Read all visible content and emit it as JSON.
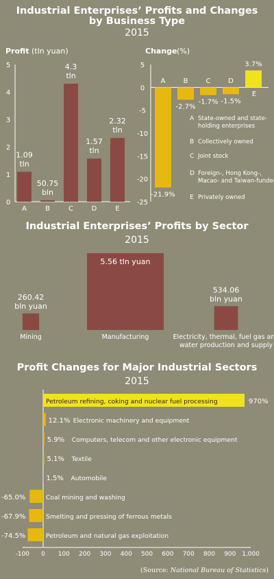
{
  "colors": {
    "background": "#8e8b77",
    "profit_bar": "#8a4a43",
    "change_bar": "#e7b810",
    "highlight_bar": "#f2e21c",
    "text": "#ffffff"
  },
  "section1": {
    "title_line1": "Industrial Enterprises’ Profits and Changes",
    "title_line2": "by Business Type",
    "year": "2015"
  },
  "section2": {
    "title": "Industrial Enterprises’ Profits by Sector",
    "year": "2015"
  },
  "section3": {
    "title": "Profit Changes for Major Industrial Sectors",
    "year": "2015"
  },
  "source": {
    "prefix": "(Source: ",
    "name": "National Bureau of Statistics",
    "suffix": ")"
  },
  "chart_data": [
    {
      "type": "bar",
      "title": "Profit",
      "unit": "(tln yuan)",
      "categories": [
        "A",
        "B",
        "C",
        "D",
        "E"
      ],
      "values": [
        1.09,
        0.05075,
        4.3,
        1.57,
        2.32
      ],
      "value_labels": [
        [
          "1.09",
          "tln"
        ],
        [
          "50.75",
          "bln"
        ],
        [
          "4.3",
          "tln"
        ],
        [
          "1.57",
          "tln"
        ],
        [
          "2.32",
          "tln"
        ]
      ],
      "yticks": [
        "0",
        "1",
        "2",
        "3",
        "4",
        "5"
      ],
      "ylim": [
        0,
        5
      ]
    },
    {
      "type": "bar",
      "title": "Change",
      "unit": "(%)",
      "categories": [
        "A",
        "B",
        "C",
        "D",
        "E"
      ],
      "values": [
        -21.9,
        -2.7,
        -1.7,
        -1.5,
        3.7
      ],
      "value_labels": [
        "-21.9%",
        "-2.7%",
        "-1.7%",
        "-1.5%",
        "3.7%"
      ],
      "yticks": [
        "5",
        "0",
        "-5",
        "-10",
        "-15",
        "-20",
        "-25"
      ],
      "ylim": [
        -25,
        5
      ],
      "legend": [
        {
          "key": "A",
          "lines": [
            "State-owned and state-",
            "holding enterprises"
          ]
        },
        {
          "key": "B",
          "lines": [
            "Collectively owned"
          ]
        },
        {
          "key": "C",
          "lines": [
            "Joint stock"
          ]
        },
        {
          "key": "D",
          "lines": [
            "Foreign-, Hong Kong-,",
            "Macao- and Taiwan-funded"
          ]
        },
        {
          "key": "E",
          "lines": [
            "Privately owned"
          ]
        }
      ]
    },
    {
      "type": "bar",
      "categories": [
        "Mining",
        "Manufacturing",
        "Electricity, thermal, fuel gas and water production and supply"
      ],
      "category_lines": [
        [
          "Mining"
        ],
        [
          "Manufacturing"
        ],
        [
          "Electricity, thermal, fuel gas and",
          "water production and supply"
        ]
      ],
      "values_bln_yuan": [
        260.42,
        5560,
        534.06
      ],
      "value_labels": [
        [
          "260.42",
          "bln yuan"
        ],
        [
          "5.56 tln yuan"
        ],
        [
          "534.06",
          "bln yuan"
        ]
      ]
    },
    {
      "type": "bar",
      "orientation": "horizontal",
      "categories": [
        "Petroleum refining, coking and nuclear fuel processing",
        "Electronic machinery and equipment",
        "Computers, telecom and other electronic equipment",
        "Textile",
        "Automobile",
        "Coal mining and washing",
        "Smelting and pressing of ferrous metals",
        "Petroleum and natural gas exploitation"
      ],
      "values": [
        970,
        12.1,
        5.9,
        5.1,
        1.5,
        -65.0,
        -67.9,
        -74.5
      ],
      "value_labels": [
        "970%",
        "12.1%",
        "5.9%",
        "5.1%",
        "1.5%",
        "-65.0%",
        "-67.9%",
        "-74.5%"
      ],
      "xticks": [
        "-100",
        "0",
        "100",
        "200",
        "300",
        "400",
        "500",
        "600",
        "700",
        "800",
        "900",
        "1,000"
      ],
      "xlim": [
        -100,
        1000
      ]
    }
  ]
}
